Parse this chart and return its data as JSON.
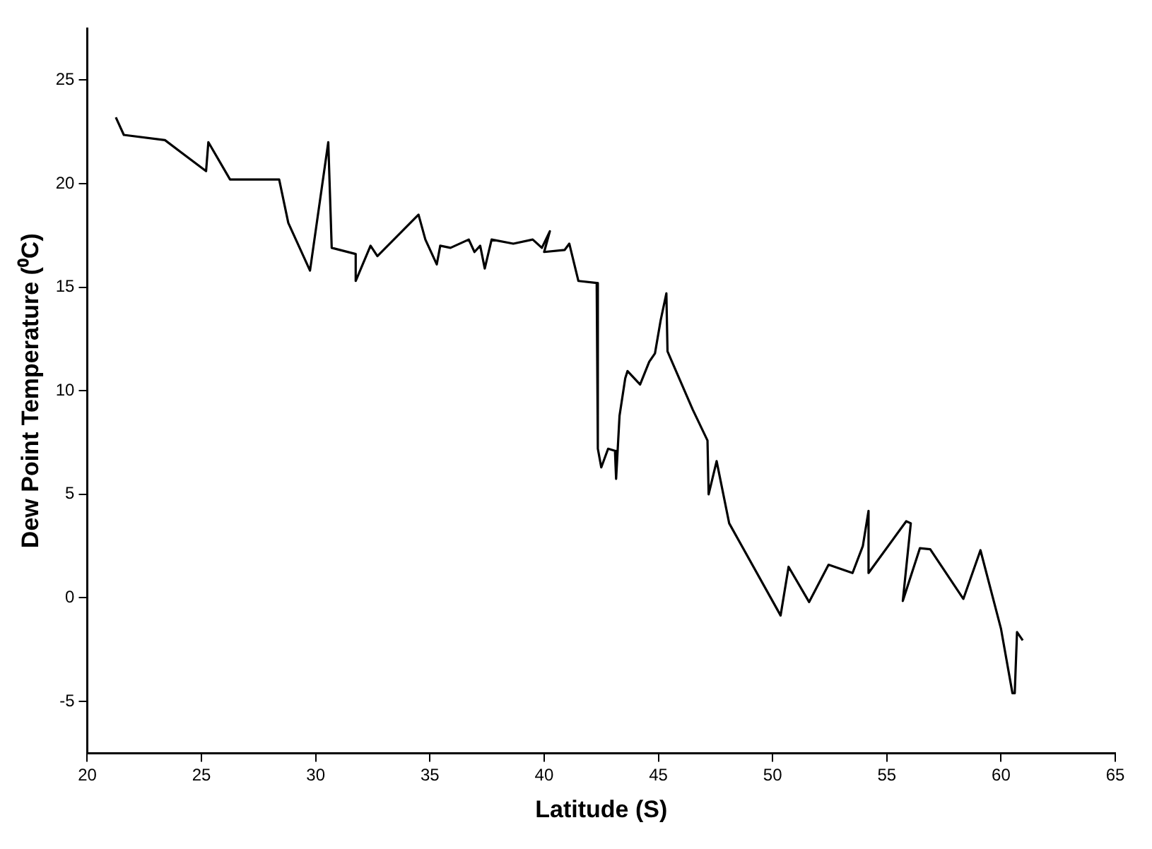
{
  "chart_data": {
    "type": "line",
    "xlabel": "Latitude (S)",
    "ylabel": "Dew Point Temperature (⁰C)",
    "xlim": [
      20,
      65
    ],
    "xticks": [
      20,
      25,
      30,
      35,
      40,
      45,
      50,
      55,
      60,
      65
    ],
    "ylim": [
      -7.5,
      27.5
    ],
    "yticks": [
      -5,
      0,
      5,
      10,
      15,
      20,
      25
    ],
    "grid": false,
    "legend": false,
    "marker": "none",
    "line_style": "solid",
    "series": [
      {
        "color": "#000000",
        "x": [
          21.25,
          21.6,
          23.4,
          25.2,
          25.3,
          26.25,
          28.4,
          28.8,
          29.75,
          30.55,
          30.7,
          31.75,
          31.75,
          32.4,
          32.7,
          34.5,
          34.8,
          35.3,
          35.45,
          35.9,
          36.7,
          36.95,
          37.2,
          37.4,
          37.7,
          38.65,
          39.5,
          39.9,
          40.25,
          40.0,
          40.9,
          41.1,
          41.5,
          42.3,
          42.35,
          42.5,
          42.8,
          43.1,
          43.15,
          43.3,
          43.55,
          43.65,
          44.2,
          44.6,
          44.85,
          45.1,
          45.35,
          45.4,
          46.5,
          47.15,
          47.2,
          47.55,
          48.1,
          50.35,
          50.7,
          51.6,
          52.45,
          53.5,
          53.95,
          54.2,
          54.2,
          55.85,
          56.05,
          55.7,
          56.45,
          56.9,
          58.35,
          59.1,
          60.0,
          60.5,
          60.6,
          60.7,
          60.95
        ],
        "values": [
          23.2,
          22.35,
          22.1,
          20.6,
          22.0,
          20.2,
          20.2,
          18.1,
          15.8,
          22.0,
          16.9,
          16.6,
          15.3,
          17.0,
          16.5,
          18.5,
          17.3,
          16.1,
          17.0,
          16.9,
          17.3,
          16.7,
          17.0,
          15.9,
          17.3,
          17.1,
          17.3,
          16.9,
          17.7,
          16.7,
          16.8,
          17.1,
          15.3,
          15.2,
          7.2,
          6.3,
          7.2,
          7.1,
          5.75,
          8.8,
          10.6,
          10.95,
          10.3,
          11.4,
          11.8,
          13.4,
          14.7,
          11.9,
          9.1,
          7.6,
          5.0,
          6.6,
          3.6,
          -0.85,
          1.5,
          -0.2,
          1.6,
          1.2,
          2.5,
          4.2,
          1.2,
          3.7,
          3.6,
          -0.15,
          2.4,
          2.35,
          -0.05,
          2.3,
          -1.5,
          -4.6,
          -4.6,
          -1.65,
          -2.05
        ]
      }
    ]
  }
}
